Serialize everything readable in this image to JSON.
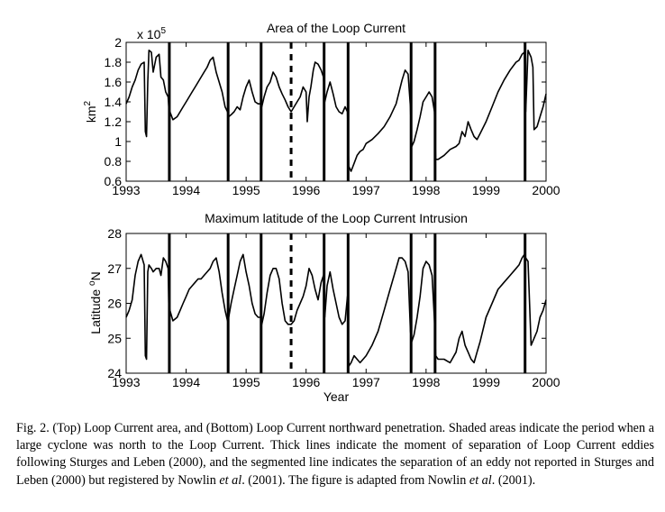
{
  "chart_data": [
    {
      "type": "line",
      "title": "Area of the Loop Current",
      "ylabel": "km",
      "ylabel_sup": "2",
      "scale_base": "x 10",
      "scale_exp": "5",
      "xlim": [
        1993,
        2000
      ],
      "ylim": [
        0.6,
        2
      ],
      "yticks": [
        "0.6",
        "0.8",
        "1",
        "1.2",
        "1.4",
        "1.6",
        "1.8",
        "2"
      ],
      "xticks": [
        "1993",
        "1994",
        "1995",
        "1996",
        "1997",
        "1998",
        "1999",
        "2000"
      ],
      "separation_lines": [
        1993.72,
        1994.7,
        1995.25,
        1996.3,
        1996.7,
        1997.75,
        1998.15,
        1999.65
      ],
      "dashed_line": 1995.75,
      "series": {
        "x": [
          1993.0,
          1993.05,
          1993.1,
          1993.15,
          1993.2,
          1993.25,
          1993.3,
          1993.32,
          1993.34,
          1993.36,
          1993.38,
          1993.42,
          1993.45,
          1993.5,
          1993.55,
          1993.58,
          1993.62,
          1993.66,
          1993.7,
          1993.71,
          1993.73,
          1993.78,
          1993.85,
          1993.9,
          1993.95,
          1994.0,
          1994.05,
          1994.1,
          1994.15,
          1994.2,
          1994.25,
          1994.3,
          1994.35,
          1994.4,
          1994.45,
          1994.5,
          1994.55,
          1994.6,
          1994.65,
          1994.69,
          1994.71,
          1994.75,
          1994.8,
          1994.85,
          1994.9,
          1994.95,
          1995.0,
          1995.05,
          1995.1,
          1995.15,
          1995.2,
          1995.24,
          1995.26,
          1995.3,
          1995.35,
          1995.4,
          1995.45,
          1995.5,
          1995.55,
          1995.6,
          1995.65,
          1995.7,
          1995.75,
          1995.8,
          1995.85,
          1995.9,
          1995.95,
          1996.0,
          1996.02,
          1996.05,
          1996.08,
          1996.12,
          1996.15,
          1996.2,
          1996.25,
          1996.29,
          1996.31,
          1996.35,
          1996.4,
          1996.45,
          1996.5,
          1996.55,
          1996.6,
          1996.65,
          1996.69,
          1996.71,
          1996.75,
          1996.8,
          1996.85,
          1996.9,
          1996.95,
          1997.0,
          1997.1,
          1997.2,
          1997.3,
          1997.4,
          1997.5,
          1997.55,
          1997.6,
          1997.65,
          1997.7,
          1997.74,
          1997.76,
          1997.8,
          1997.85,
          1997.9,
          1997.95,
          1998.0,
          1998.05,
          1998.1,
          1998.14,
          1998.16,
          1998.2,
          1998.3,
          1998.4,
          1998.5,
          1998.55,
          1998.6,
          1998.65,
          1998.7,
          1998.75,
          1998.8,
          1998.85,
          1998.9,
          1999.0,
          1999.1,
          1999.2,
          1999.3,
          1999.4,
          1999.5,
          1999.55,
          1999.6,
          1999.64,
          1999.66,
          1999.7,
          1999.75,
          1999.78,
          1999.8,
          1999.85,
          1999.9,
          1999.95,
          2000.0
        ],
        "y": [
          1.38,
          1.45,
          1.55,
          1.62,
          1.72,
          1.78,
          1.8,
          1.1,
          1.05,
          1.6,
          1.92,
          1.9,
          1.7,
          1.85,
          1.88,
          1.65,
          1.62,
          1.5,
          1.45,
          1.35,
          1.3,
          1.22,
          1.25,
          1.3,
          1.35,
          1.4,
          1.45,
          1.5,
          1.55,
          1.6,
          1.65,
          1.7,
          1.75,
          1.82,
          1.85,
          1.7,
          1.6,
          1.5,
          1.35,
          1.3,
          1.25,
          1.27,
          1.3,
          1.35,
          1.32,
          1.45,
          1.55,
          1.62,
          1.5,
          1.4,
          1.38,
          1.38,
          1.35,
          1.45,
          1.55,
          1.6,
          1.7,
          1.65,
          1.55,
          1.48,
          1.42,
          1.35,
          1.3,
          1.35,
          1.4,
          1.45,
          1.55,
          1.5,
          1.2,
          1.45,
          1.55,
          1.72,
          1.8,
          1.78,
          1.72,
          1.65,
          1.4,
          1.5,
          1.6,
          1.48,
          1.35,
          1.3,
          1.28,
          1.35,
          1.3,
          0.75,
          0.7,
          0.78,
          0.86,
          0.9,
          0.92,
          0.98,
          1.02,
          1.08,
          1.15,
          1.25,
          1.38,
          1.5,
          1.62,
          1.72,
          1.68,
          1.35,
          0.95,
          1.0,
          1.12,
          1.25,
          1.4,
          1.45,
          1.5,
          1.45,
          1.3,
          0.82,
          0.82,
          0.86,
          0.92,
          0.95,
          0.98,
          1.1,
          1.05,
          1.2,
          1.12,
          1.05,
          1.02,
          1.08,
          1.2,
          1.35,
          1.5,
          1.62,
          1.72,
          1.8,
          1.82,
          1.88,
          1.9,
          1.3,
          1.92,
          1.85,
          1.75,
          1.12,
          1.15,
          1.25,
          1.35,
          1.48
        ]
      }
    },
    {
      "type": "line",
      "title": "Maximum latitude of the Loop Current Intrusion",
      "ylabel": "Latitude",
      "ylabel_sup": "o",
      "ylabel_unit": "N",
      "xlabel": "Year",
      "xlim": [
        1993,
        2000
      ],
      "ylim": [
        24,
        28
      ],
      "yticks": [
        "24",
        "25",
        "26",
        "27",
        "28"
      ],
      "xticks": [
        "1993",
        "1994",
        "1995",
        "1996",
        "1997",
        "1998",
        "1999",
        "2000"
      ],
      "separation_lines": [
        1993.72,
        1994.7,
        1995.25,
        1996.3,
        1996.7,
        1997.75,
        1998.15,
        1999.65
      ],
      "dashed_line": 1995.75,
      "series": {
        "x": [
          1993.0,
          1993.05,
          1993.1,
          1993.15,
          1993.2,
          1993.25,
          1993.3,
          1993.32,
          1993.34,
          1993.36,
          1993.38,
          1993.42,
          1993.45,
          1993.5,
          1993.55,
          1993.58,
          1993.62,
          1993.66,
          1993.7,
          1993.71,
          1993.73,
          1993.78,
          1993.85,
          1993.9,
          1993.95,
          1994.0,
          1994.05,
          1994.1,
          1994.15,
          1994.2,
          1994.25,
          1994.3,
          1994.35,
          1994.4,
          1994.45,
          1994.5,
          1994.55,
          1994.6,
          1994.65,
          1994.69,
          1994.71,
          1994.75,
          1994.8,
          1994.85,
          1994.9,
          1994.95,
          1995.0,
          1995.05,
          1995.1,
          1995.15,
          1995.2,
          1995.24,
          1995.26,
          1995.3,
          1995.35,
          1995.4,
          1995.45,
          1995.5,
          1995.55,
          1995.6,
          1995.65,
          1995.7,
          1995.75,
          1995.8,
          1995.85,
          1995.9,
          1995.95,
          1996.0,
          1996.05,
          1996.1,
          1996.15,
          1996.2,
          1996.25,
          1996.29,
          1996.31,
          1996.35,
          1996.4,
          1996.45,
          1996.5,
          1996.55,
          1996.6,
          1996.65,
          1996.69,
          1996.71,
          1996.75,
          1996.8,
          1996.85,
          1996.9,
          1996.95,
          1997.0,
          1997.1,
          1997.2,
          1997.3,
          1997.4,
          1997.5,
          1997.55,
          1997.6,
          1997.65,
          1997.7,
          1997.74,
          1997.76,
          1997.8,
          1997.85,
          1997.9,
          1997.95,
          1998.0,
          1998.05,
          1998.1,
          1998.14,
          1998.16,
          1998.2,
          1998.3,
          1998.4,
          1998.5,
          1998.55,
          1998.6,
          1998.65,
          1998.7,
          1998.75,
          1998.8,
          1998.85,
          1998.9,
          1999.0,
          1999.1,
          1999.2,
          1999.3,
          1999.4,
          1999.5,
          1999.55,
          1999.6,
          1999.64,
          1999.66,
          1999.7,
          1999.75,
          1999.8,
          1999.85,
          1999.9,
          1999.95,
          2000.0
        ],
        "y": [
          25.6,
          25.8,
          26.1,
          26.8,
          27.2,
          27.4,
          27.1,
          24.5,
          24.4,
          26.9,
          27.1,
          27.0,
          26.9,
          27.0,
          27.0,
          26.8,
          27.3,
          27.2,
          27.0,
          26.0,
          25.8,
          25.5,
          25.6,
          25.8,
          26.0,
          26.2,
          26.4,
          26.5,
          26.6,
          26.7,
          26.7,
          26.8,
          26.9,
          27.0,
          27.2,
          27.3,
          26.9,
          26.3,
          25.8,
          25.5,
          25.6,
          26.0,
          26.4,
          26.8,
          27.2,
          27.4,
          26.9,
          26.5,
          26.0,
          25.7,
          25.6,
          25.6,
          25.4,
          25.7,
          26.3,
          26.8,
          27.0,
          27.0,
          26.7,
          26.0,
          25.5,
          25.4,
          25.4,
          25.5,
          25.8,
          26.0,
          26.2,
          26.5,
          27.0,
          26.8,
          26.4,
          26.1,
          26.6,
          26.8,
          25.6,
          26.5,
          26.9,
          26.4,
          26.0,
          25.6,
          25.4,
          25.5,
          26.2,
          24.2,
          24.3,
          24.5,
          24.4,
          24.3,
          24.4,
          24.5,
          24.8,
          25.2,
          25.8,
          26.4,
          27.0,
          27.3,
          27.3,
          27.2,
          26.9,
          25.2,
          24.9,
          25.1,
          25.6,
          26.2,
          27.0,
          27.2,
          27.1,
          26.8,
          25.5,
          24.5,
          24.4,
          24.4,
          24.3,
          24.6,
          25.0,
          25.2,
          24.8,
          24.6,
          24.4,
          24.3,
          24.6,
          24.9,
          25.6,
          26.0,
          26.4,
          26.6,
          26.8,
          27.0,
          27.1,
          27.3,
          27.4,
          27.3,
          27.2,
          24.8,
          25.0,
          25.2,
          25.6,
          25.8,
          26.1
        ]
      }
    }
  ],
  "caption": {
    "p1": "Fig. 2. (Top) Loop Current area, and (Bottom) Loop Current northward penetration. Shaded areas indicate the period when a large cyclone was north to the Loop Current. Thick lines indicate the moment of separation of Loop Current eddies following Sturges and Leben (2000), and the segmented line indicates the separation of an eddy not reported in Sturges and Leben (2000) but registered by Nowlin ",
    "et_al_1": "et al",
    "p2": ". (2001). The figure is adapted from Nowlin ",
    "et_al_2": "et al",
    "p3": ". (2001)."
  }
}
